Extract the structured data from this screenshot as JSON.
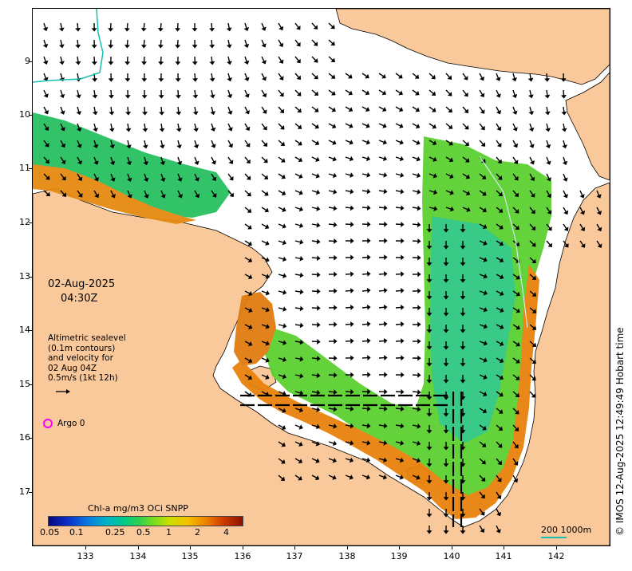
{
  "map": {
    "date": "02-Aug-2025",
    "time": "04:30Z",
    "altimetry": {
      "line1": "Altimetric sealevel",
      "line2": "(0.1m contours)",
      "line3": "and velocity for",
      "line4": "02 Aug 04Z",
      "line5": "0.5m/s (1kt 12h)"
    },
    "argo_label": "Argo 0",
    "legend": {
      "title": "Chl-a mg/m3 OCi SNPP",
      "ticks": [
        "0.05",
        "0.1",
        "0.25",
        "0.5",
        "1",
        "2",
        "4"
      ],
      "colors": [
        "#060680",
        "#0a78e0",
        "#00c890",
        "#78dc20",
        "#f5c000",
        "#d03c00",
        "#8c1000"
      ]
    },
    "copyright": "© IMOS 12-Aug-2025 12:49:49 Hobart time",
    "scale_label": "200  1000m",
    "x_ticks": [
      "133",
      "134",
      "135",
      "136",
      "137",
      "138",
      "139",
      "140",
      "141",
      "142"
    ],
    "y_ticks": [
      "9",
      "10",
      "11",
      "12",
      "13",
      "14",
      "15",
      "16",
      "17"
    ],
    "colors": {
      "land": "#f9c99b",
      "ocean": "#ffffff",
      "argo": "#ff00ff",
      "contour": "#16c0b0"
    }
  }
}
